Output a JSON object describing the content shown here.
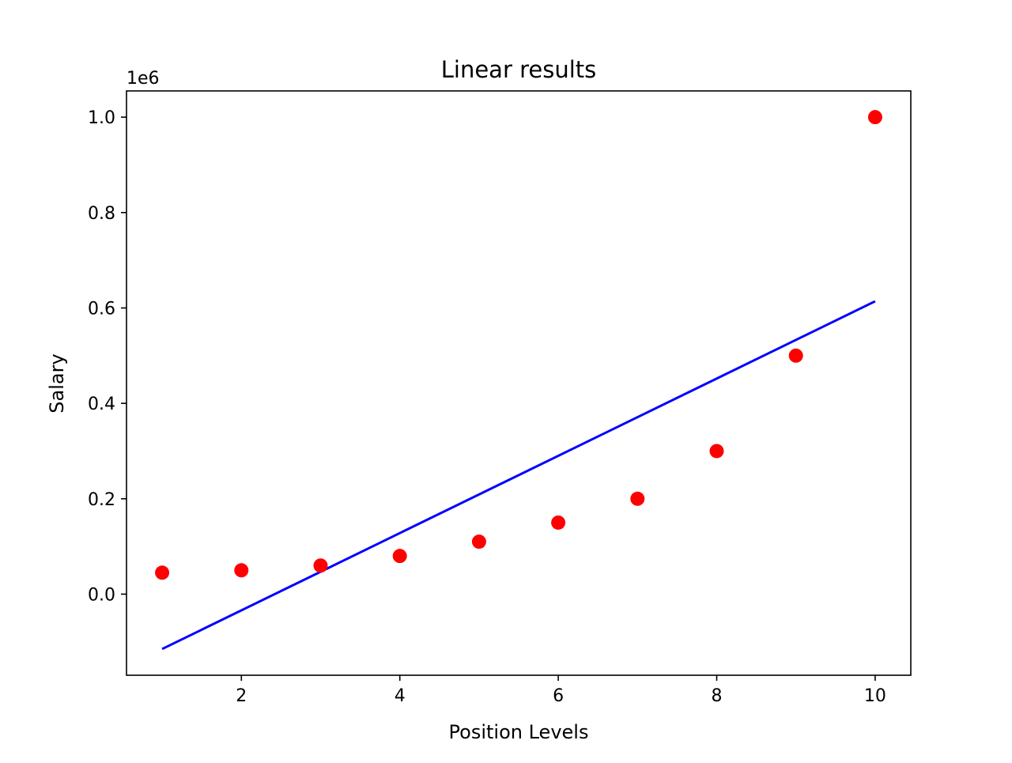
{
  "chart_data": {
    "type": "scatter",
    "title": "Linear results",
    "xlabel": "Position Levels",
    "ylabel": "Salary",
    "y_offset_label": "1e6",
    "xlim": [
      0.55,
      10.45
    ],
    "ylim": [
      -0.17,
      1.055
    ],
    "x_ticks": [
      2,
      4,
      6,
      8,
      10
    ],
    "x_tick_labels": [
      "2",
      "4",
      "6",
      "8",
      "10"
    ],
    "y_ticks": [
      0.0,
      0.2,
      0.4,
      0.6,
      0.8,
      1.0
    ],
    "y_tick_labels": [
      "0.0",
      "0.2",
      "0.4",
      "0.6",
      "0.8",
      "1.0"
    ],
    "grid": false,
    "series": [
      {
        "kind": "scatter",
        "color": "#ff0000",
        "x": [
          1,
          2,
          3,
          4,
          5,
          6,
          7,
          8,
          9,
          10
        ],
        "y": [
          0.045,
          0.05,
          0.06,
          0.08,
          0.11,
          0.15,
          0.2,
          0.3,
          0.5,
          1.0
        ]
      },
      {
        "kind": "line",
        "color": "#0000ff",
        "x": [
          1,
          10
        ],
        "y": [
          -0.115,
          0.614
        ]
      }
    ]
  }
}
